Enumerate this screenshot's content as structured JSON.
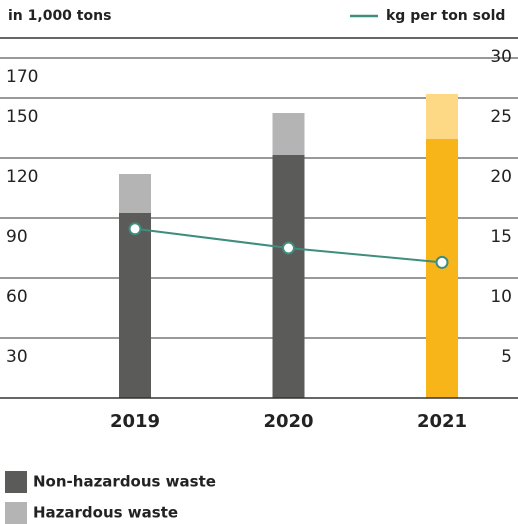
{
  "chart_data": {
    "type": "bar",
    "stacked": true,
    "y_axis_label": "in 1,000 tons",
    "categories": [
      "2019",
      "2020",
      "2021"
    ],
    "series": [
      {
        "name": "Non-hazardous waste",
        "color": "#5b5b5a",
        "colors": [
          "#5b5b5a",
          "#5b5b5a",
          "#f7b51a"
        ],
        "values": [
          92.5,
          121.5,
          129.5
        ]
      },
      {
        "name": "Hazardous waste",
        "color": "#b4b4b4",
        "colors": [
          "#b4b4b4",
          "#b4b4b4",
          "#fdd985"
        ],
        "values": [
          19.5,
          21,
          22.5
        ]
      },
      {
        "name": "kg per ton sold",
        "type": "line",
        "axis": "y2",
        "color": "#3e8d7d",
        "values": [
          14.1,
          12.5,
          11.3
        ]
      }
    ],
    "ylim": [
      0,
      180
    ],
    "yticks": [
      30,
      60,
      90,
      120,
      150,
      170
    ],
    "y2lim": [
      0,
      30
    ],
    "y2ticks": [
      5,
      10,
      15,
      20,
      25,
      30
    ],
    "grid": true
  }
}
